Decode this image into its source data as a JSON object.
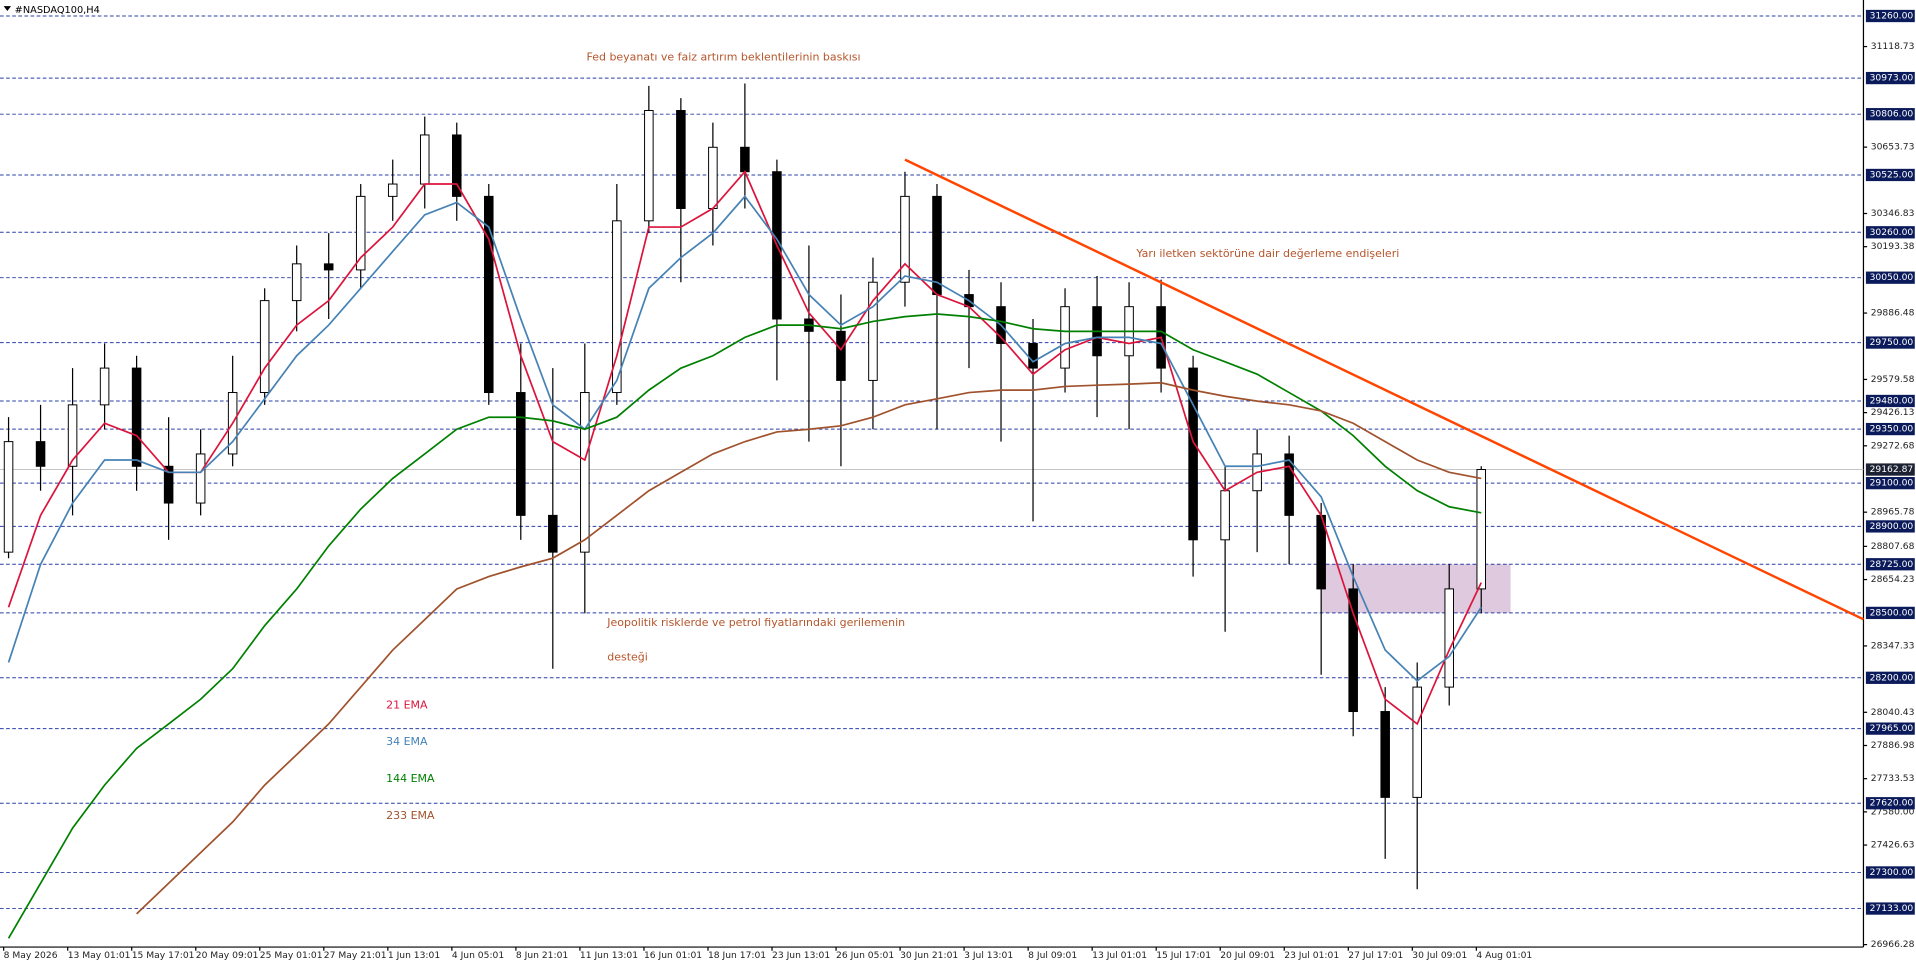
{
  "chart_data": {
    "type": "candlestick",
    "symbol": "#NASDAQ100,H4",
    "categories": [
      "8 May 2026",
      null,
      "13 May 01:01",
      null,
      "15 May 17:01",
      null,
      "20 May 09:01",
      null,
      "25 May 01:01",
      null,
      "27 May 21:01",
      null,
      "1 Jun 13:01",
      null,
      "4 Jun 05:01",
      null,
      "8 Jun 21:01",
      null,
      "11 Jun 13:01",
      null,
      "16 Jun 01:01",
      null,
      "18 Jun 17:01",
      null,
      "23 Jun 13:01",
      null,
      "26 Jun 05:01",
      null,
      "30 Jun 21:01",
      null,
      "3 Jul 13:01",
      null,
      "8 Jul 09:01",
      null,
      "13 Jul 01:01",
      null,
      "15 Jul 17:01",
      null,
      "20 Jul 09:01",
      null,
      "23 Jul 01:01",
      null,
      "27 Jul 17:01",
      null,
      "30 Jul 09:01",
      null,
      "4 Aug 01:01"
    ],
    "open": [
      28781,
      29292,
      29178,
      29462,
      29632,
      29178,
      29008,
      29235,
      29519,
      29944,
      30114,
      30086,
      30426,
      30483,
      30710,
      30426,
      29519,
      28951,
      28781,
      29519,
      30313,
      30823,
      30370,
      30653,
      30540,
      29859,
      29802,
      29575,
      30029,
      30426,
      29972,
      29916,
      29746,
      29632,
      29916,
      29689,
      29916,
      29632,
      28838,
      29065,
      29235,
      28951,
      28611,
      28044,
      27647,
      28157,
      28611
    ],
    "high": [
      29405,
      29462,
      29632,
      29746,
      29689,
      29405,
      29349,
      29689,
      30001,
      30199,
      30256,
      30483,
      30596,
      30795,
      30767,
      30483,
      29746,
      29632,
      29746,
      30483,
      30937,
      30880,
      30767,
      30948,
      30596,
      30199,
      29972,
      30143,
      30540,
      30483,
      30086,
      30029,
      29859,
      30001,
      30058,
      30029,
      30041,
      29689,
      29178,
      29349,
      29320,
      29008,
      28725,
      28157,
      28271,
      28725,
      29178
    ],
    "low": [
      28753,
      29065,
      28951,
      29349,
      29065,
      28838,
      28951,
      29178,
      29462,
      29802,
      29859,
      30001,
      30313,
      30370,
      30313,
      29462,
      28838,
      28242,
      28498,
      29462,
      30256,
      30029,
      30199,
      30370,
      29575,
      29292,
      29178,
      29349,
      29916,
      29349,
      29632,
      29292,
      28923,
      29519,
      29405,
      29349,
      29519,
      28668,
      28413,
      28781,
      28725,
      28214,
      27930,
      27363,
      27222,
      28072,
      28498
    ],
    "close": [
      29292,
      29178,
      29462,
      29632,
      29178,
      29008,
      29235,
      29519,
      29944,
      30114,
      30086,
      30426,
      30483,
      30710,
      30426,
      29519,
      28951,
      28781,
      29519,
      30313,
      30823,
      30370,
      30653,
      30540,
      29859,
      29802,
      29575,
      30029,
      30426,
      29972,
      29916,
      29746,
      29632,
      29916,
      29689,
      29916,
      29632,
      28838,
      29065,
      29235,
      28951,
      28611,
      28044,
      27647,
      28157,
      28611,
      29163
    ],
    "series": [
      {
        "name": "21 EMA",
        "color": "#dc143c",
        "values": [
          28526,
          28951,
          29207,
          29377,
          29320,
          29150,
          29150,
          29377,
          29632,
          29831,
          29944,
          30143,
          30284,
          30483,
          30483,
          30228,
          29689,
          29292,
          29207,
          29689,
          30284,
          30284,
          30370,
          30540,
          30199,
          29887,
          29717,
          29944,
          30114,
          29972,
          29916,
          29774,
          29604,
          29717,
          29774,
          29746,
          29774,
          29292,
          29065,
          29150,
          29178,
          28951,
          28498,
          28101,
          27987,
          28328,
          28640
        ]
      },
      {
        "name": "34 EMA",
        "color": "#4682b4",
        "values": [
          28271,
          28725,
          29008,
          29207,
          29207,
          29150,
          29150,
          29292,
          29490,
          29689,
          29831,
          30001,
          30171,
          30341,
          30398,
          30284,
          29859,
          29462,
          29349,
          29575,
          30001,
          30143,
          30256,
          30426,
          30228,
          29972,
          29831,
          29916,
          30058,
          30029,
          29944,
          29831,
          29661,
          29746,
          29774,
          29774,
          29746,
          29462,
          29178,
          29178,
          29207,
          29037,
          28668,
          28328,
          28186,
          28299,
          28526
        ]
      },
      {
        "name": "144 EMA",
        "color": "#008000",
        "values": [
          26995,
          27250,
          27505,
          27704,
          27874,
          27987,
          28101,
          28242,
          28441,
          28611,
          28810,
          28980,
          29122,
          29235,
          29349,
          29405,
          29405,
          29388,
          29349,
          29405,
          29530,
          29632,
          29689,
          29774,
          29831,
          29831,
          29814,
          29848,
          29870,
          29882,
          29870,
          29848,
          29814,
          29802,
          29802,
          29802,
          29802,
          29717,
          29661,
          29604,
          29519,
          29434,
          29320,
          29178,
          29065,
          28991,
          28963
        ]
      },
      {
        "name": "233 EMA",
        "color": "#a0522d",
        "values": [
          null,
          null,
          null,
          null,
          27108,
          27250,
          27392,
          27533,
          27704,
          27845,
          27987,
          28157,
          28328,
          28469,
          28611,
          28668,
          28713,
          28753,
          28838,
          28951,
          29065,
          29150,
          29235,
          29292,
          29337,
          29349,
          29365,
          29405,
          29462,
          29490,
          29519,
          29530,
          29530,
          29547,
          29553,
          29558,
          29564,
          29530,
          29502,
          29479,
          29462,
          29434,
          29377,
          29292,
          29207,
          29150,
          29122
        ]
      }
    ],
    "trendline": {
      "color": "#ff4500",
      "values": [
        null,
        null,
        null,
        null,
        null,
        null,
        null,
        null,
        null,
        null,
        null,
        null,
        null,
        null,
        null,
        null,
        null,
        null,
        null,
        null,
        null,
        null,
        null,
        null,
        null,
        null,
        null,
        null,
        30596,
        null,
        null,
        null,
        null,
        null,
        null,
        null,
        null,
        null,
        null,
        null,
        null,
        null,
        null,
        null,
        null,
        null,
        29318
      ]
    },
    "zone": {
      "from": 28500,
      "to": 28725,
      "color": "#d8bfd8"
    },
    "levels": [
      {
        "value": 31260,
        "label": "31260.00"
      },
      {
        "value": 30973,
        "label": "30973.00"
      },
      {
        "value": 30806,
        "label": "30806.00"
      },
      {
        "value": 30525,
        "label": "30525.00"
      },
      {
        "value": 30260,
        "label": "30260.00"
      },
      {
        "value": 30050,
        "label": "30050.00"
      },
      {
        "value": 29750,
        "label": "29750.00"
      },
      {
        "value": 29480,
        "label": "29480.00"
      },
      {
        "value": 29350,
        "label": "29350.00"
      },
      {
        "value": 29100,
        "label": "29100.00"
      },
      {
        "value": 28900,
        "label": "28900.00"
      },
      {
        "value": 28725,
        "label": "28725.00"
      },
      {
        "value": 28500,
        "label": "28500.00"
      },
      {
        "value": 28200,
        "label": "28200.00"
      },
      {
        "value": 27965,
        "label": "27965.00"
      },
      {
        "value": 27620,
        "label": "27620.00"
      },
      {
        "value": 27300,
        "label": "27300.00"
      },
      {
        "value": 27133,
        "label": "27133.00"
      }
    ],
    "current_price": {
      "value": 29162.87,
      "label": "29162.87"
    },
    "yticks": [
      31118.73,
      30653.73,
      30346.83,
      30193.38,
      29886.48,
      29579.58,
      29426.13,
      29272.68,
      28965.78,
      28807.68,
      28654.23,
      28347.33,
      28040.43,
      27886.98,
      27733.53,
      {
        "value": 27580,
        "label": "27580.00"
      },
      27426.63,
      26966.28
    ],
    "ylim": [
      26955,
      31334
    ],
    "annotation_color": "#b5552b",
    "annotations": [
      "Fed beyanatı ve faiz artırım beklentilerinin baskısı",
      "Yarı iletken sektörüne dair değerleme endişeleri",
      "Jeopolitik risklerde ve petrol fiyatlarındaki gerilemenin",
      "desteği"
    ]
  }
}
